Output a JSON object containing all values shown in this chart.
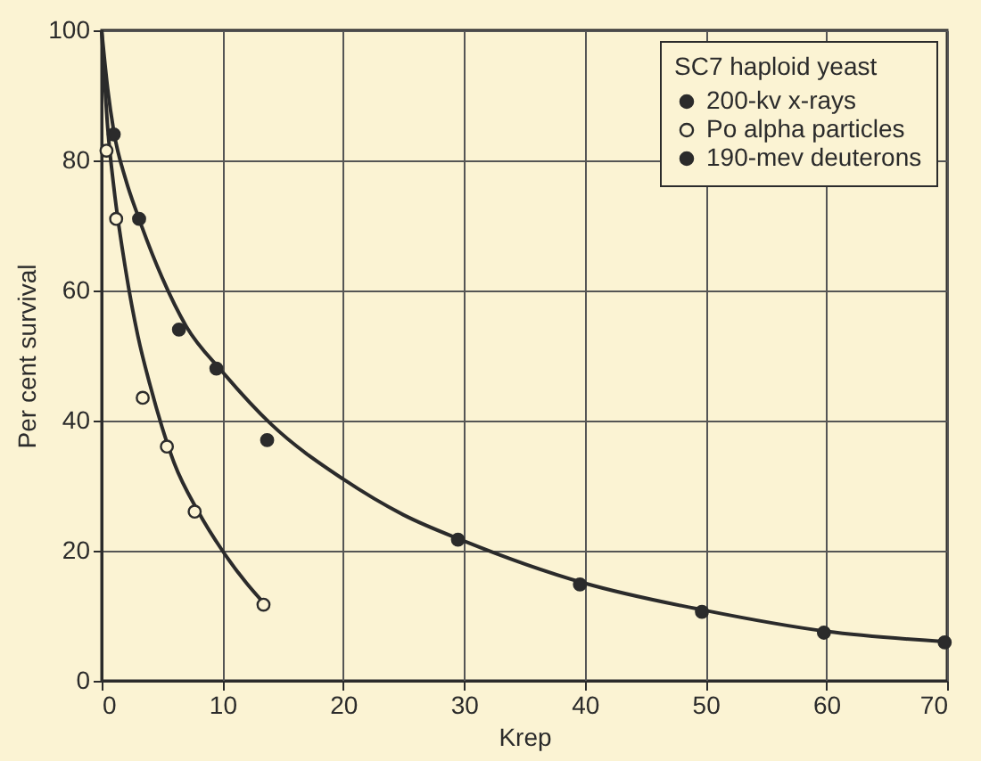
{
  "chart_data": {
    "type": "scatter",
    "xlabel": "Krep",
    "ylabel": "Per cent survival",
    "legend_title": "SC7 haploid yeast",
    "legend": "top right",
    "grid": true,
    "marker": "circle",
    "xlim": [
      0,
      70
    ],
    "ylim": [
      0,
      100
    ],
    "xticks": [
      0,
      10,
      20,
      30,
      40,
      50,
      60,
      70
    ],
    "yticks": [
      0,
      20,
      40,
      60,
      80,
      100
    ],
    "series": [
      {
        "name": "200-kv x-rays",
        "color": "#2b2b2b",
        "x": [
          1.0,
          3.1,
          6.4,
          9.5,
          13.7
        ],
        "values": [
          84,
          71,
          54,
          48,
          37
        ]
      },
      {
        "name": "Po alpha particles",
        "color": "#fbf3d3",
        "x": [
          0.4,
          1.2,
          3.4,
          5.4,
          7.7,
          13.4
        ],
        "values": [
          81.5,
          71,
          43.5,
          36,
          26,
          11.7
        ]
      },
      {
        "name": "190-mev deuterons",
        "color": "#2b2b2b",
        "x": [
          29.5,
          39.6,
          49.7,
          59.8,
          69.8
        ],
        "values": [
          21.7,
          14.8,
          10.6,
          7.4,
          5.9
        ]
      },
      {
        "type": "line",
        "marker": "none",
        "line_style": "solid",
        "color": "#2b2b2b",
        "x": [
          0,
          0.5,
          1,
          2,
          3,
          5,
          7,
          10,
          14,
          20,
          25,
          30,
          40,
          50,
          60,
          70
        ],
        "values": [
          100,
          91,
          84.5,
          77,
          71.5,
          62,
          54.5,
          47.5,
          39.5,
          31,
          25.5,
          21.5,
          15,
          10.8,
          7.6,
          6
        ]
      },
      {
        "type": "line",
        "marker": "none",
        "line_style": "solid",
        "color": "#2b2b2b",
        "x": [
          0,
          0.5,
          1,
          2,
          3,
          4,
          5,
          6,
          8,
          10,
          12,
          13.5
        ],
        "values": [
          100,
          85,
          76,
          63,
          53,
          45.5,
          39,
          33.5,
          26,
          20,
          15,
          11.8
        ]
      }
    ]
  }
}
